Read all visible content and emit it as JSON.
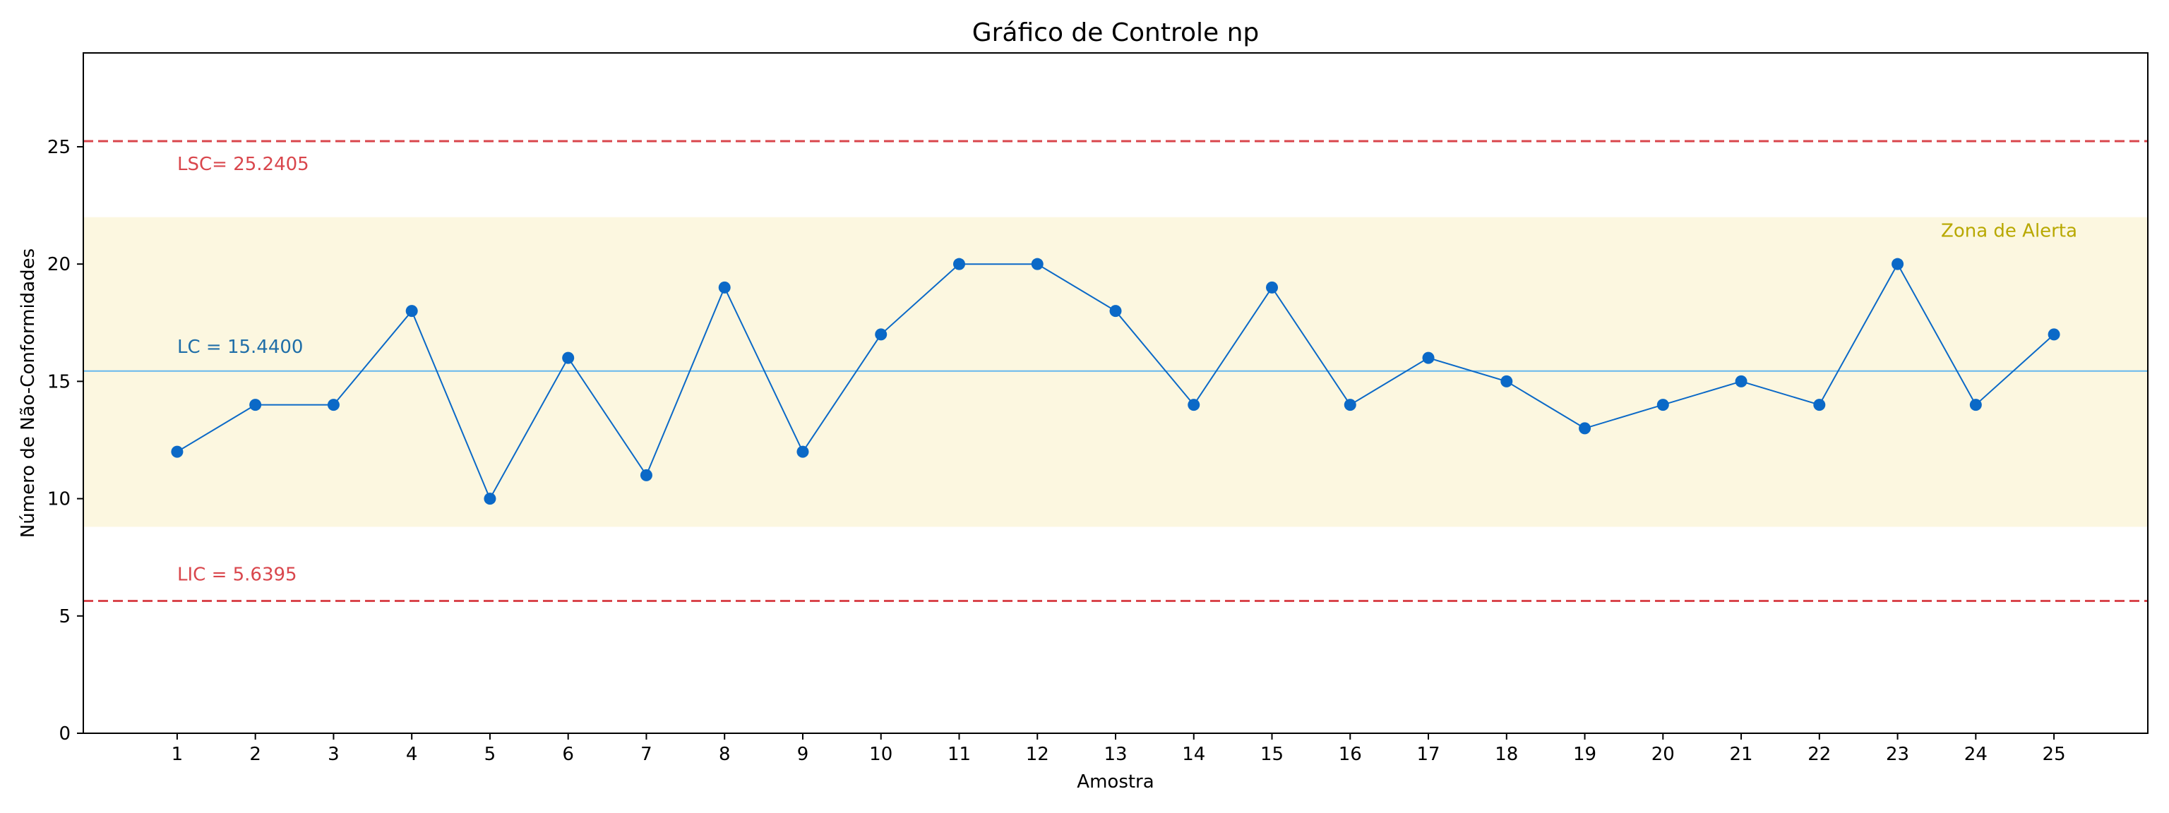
{
  "chart_data": {
    "type": "line",
    "title": "Gráfico de Controle np",
    "xlabel": "Amostra",
    "ylabel": "Número de Não-Conformidades",
    "x": [
      1,
      2,
      3,
      4,
      5,
      6,
      7,
      8,
      9,
      10,
      11,
      12,
      13,
      14,
      15,
      16,
      17,
      18,
      19,
      20,
      21,
      22,
      23,
      24,
      25
    ],
    "xlim": [
      -0.2,
      26.2
    ],
    "ylim": [
      0,
      29
    ],
    "yticks": [
      0,
      5,
      10,
      15,
      20,
      25
    ],
    "grid": false,
    "series": [
      {
        "values": [
          12,
          14,
          14,
          18,
          10,
          16,
          11,
          19,
          12,
          17,
          20,
          20,
          18,
          14,
          19,
          14,
          16,
          15,
          13,
          14,
          15,
          14,
          20,
          14,
          17
        ]
      }
    ],
    "control_lines": {
      "ucl": {
        "value": 25.2405,
        "label": "LSC= 25.2405"
      },
      "cl": {
        "value": 15.44,
        "label": "LC = 15.4400"
      },
      "lcl": {
        "value": 5.6395,
        "label": "LIC = 5.6395"
      }
    },
    "alert_zone": {
      "from": 8.8,
      "to": 22.0,
      "label": "Zona de Alerta"
    },
    "colors": {
      "series": "#0b69c7",
      "limit": "#d9464c",
      "center": "#66b7ee",
      "center_label": "#1f6ea8",
      "alert_fill": "#fcf7e0",
      "alert_label": "#b8a800"
    }
  }
}
